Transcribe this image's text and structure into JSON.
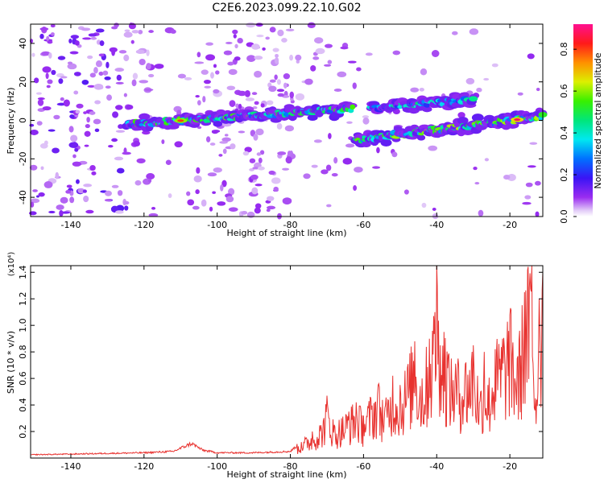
{
  "title": "C2E6.2023.099.22.10.G02",
  "colors": {
    "snr_line": "#e8322f",
    "axis": "#000000",
    "background": "#ffffff"
  },
  "chart_data": [
    {
      "type": "heatmap",
      "xlabel": "Height of straight line (km)",
      "ylabel": "Frequency (Hz)",
      "xlim": [
        -151,
        -11
      ],
      "ylim": [
        -50,
        50
      ],
      "x_ticks": [
        "-140",
        "-120",
        "-100",
        "-80",
        "-60",
        "-40",
        "-20"
      ],
      "x_tick_values": [
        -140,
        -120,
        -100,
        -80,
        -60,
        -40,
        -20
      ],
      "y_ticks": [
        "-40",
        "-20",
        "0",
        "20",
        "40"
      ],
      "y_tick_values": [
        -40,
        -20,
        0,
        20,
        40
      ],
      "colorbar": {
        "label": "Normalized spectral amplitude",
        "range": [
          0,
          0.92
        ],
        "ticks": [
          "0.0",
          "0.2",
          "0.4",
          "0.6",
          "0.8"
        ],
        "tick_values": [
          0,
          0.2,
          0.4,
          0.6,
          0.8
        ],
        "colormap": "rainbow (violet → blue → cyan → green → yellow → red → magenta)"
      },
      "features": [
        {
          "name": "main ridge",
          "x_start": -124,
          "x_end": -63,
          "freq_start": -2,
          "freq_end": 6,
          "amplitude": 0.55,
          "peak": {
            "x": -110,
            "amplitude": 0.8
          }
        },
        {
          "name": "upper ridge",
          "x_start": -58,
          "x_end": -30,
          "freq_start": 6,
          "freq_end": 11,
          "amplitude": 0.45
        },
        {
          "name": "lower ridge",
          "x_start": -62,
          "x_end": -11,
          "freq_start": -10,
          "freq_end": 2,
          "amplitude": 0.6,
          "peak": {
            "x": -18,
            "amplitude": 0.88
          }
        }
      ]
    },
    {
      "type": "line",
      "xlabel": "Height of straight line (km)",
      "ylabel": "SNR (10 * v/v)",
      "y_multiplier": "(x10⁴)",
      "xlim": [
        -151,
        -11
      ],
      "ylim": [
        0,
        1.45
      ],
      "x_ticks": [
        "-140",
        "-120",
        "-100",
        "-80",
        "-60",
        "-40",
        "-20"
      ],
      "x_tick_values": [
        -140,
        -120,
        -100,
        -80,
        -60,
        -40,
        -20
      ],
      "y_ticks": [
        "0.2",
        "0.4",
        "0.6",
        "0.8",
        "1.0",
        "1.2",
        "1.4"
      ],
      "y_tick_values": [
        0.2,
        0.4,
        0.6,
        0.8,
        1.0,
        1.2,
        1.4
      ],
      "series": [
        {
          "color": "#e8322f",
          "x": [
            -151,
            -140,
            -130,
            -120,
            -112,
            -107,
            -104,
            -100,
            -90,
            -80,
            -77,
            -74,
            -71,
            -70,
            -68,
            -66,
            -64,
            -62,
            -60,
            -58,
            -56,
            -54,
            -52,
            -50,
            -48,
            -46,
            -44,
            -42,
            -40.5,
            -40,
            -39,
            -38,
            -36,
            -34,
            -32,
            -30,
            -28,
            -27,
            -26,
            -24,
            -22,
            -20,
            -18,
            -16,
            -14,
            -13,
            -12,
            -11
          ],
          "y": [
            0.025,
            0.03,
            0.035,
            0.04,
            0.05,
            0.11,
            0.06,
            0.04,
            0.04,
            0.05,
            0.12,
            0.2,
            0.28,
            0.47,
            0.25,
            0.3,
            0.35,
            0.42,
            0.32,
            0.45,
            0.55,
            0.4,
            0.62,
            0.55,
            0.68,
            0.88,
            0.6,
            0.9,
            1.1,
            1.46,
            0.85,
            0.95,
            0.75,
            0.7,
            0.72,
            0.85,
            0.5,
            0.8,
            0.55,
            0.82,
            0.9,
            1.08,
            0.75,
            1.25,
            1.46,
            0.45,
            1.2,
            1.4
          ]
        }
      ]
    }
  ]
}
